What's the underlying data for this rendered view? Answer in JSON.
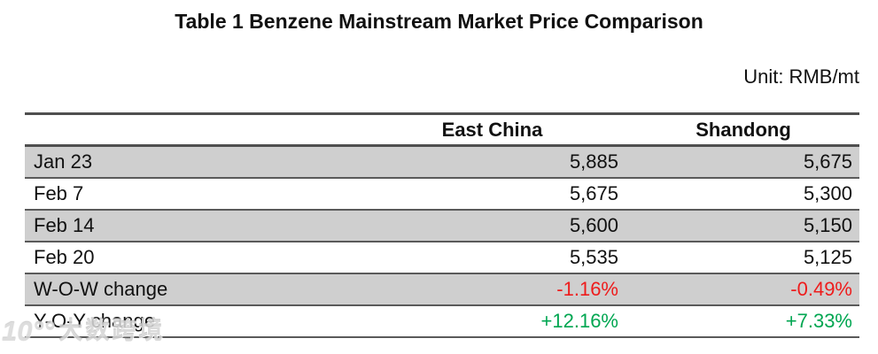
{
  "title": "Table 1 Benzene Mainstream Market Price Comparison",
  "unit_label": "Unit: RMB/mt",
  "table": {
    "columns": [
      "",
      "East China",
      "Shandong"
    ],
    "rows": [
      {
        "label": "Jan 23",
        "east_china": "5,885",
        "shandong": "5,675",
        "shaded": true,
        "value_type": "price"
      },
      {
        "label": "Feb 7",
        "east_china": "5,675",
        "shandong": "5,300",
        "shaded": false,
        "value_type": "price"
      },
      {
        "label": "Feb 14",
        "east_china": "5,600",
        "shandong": "5,150",
        "shaded": true,
        "value_type": "price"
      },
      {
        "label": "Feb 20",
        "east_china": "5,535",
        "shandong": "5,125",
        "shaded": false,
        "value_type": "price"
      },
      {
        "label": "W-O-W change",
        "east_china": "-1.16%",
        "shandong": "-0.49%",
        "shaded": true,
        "value_type": "negative"
      },
      {
        "label": "Y-O-Y change",
        "east_china": "+12.16%",
        "shandong": "+7.33%",
        "shaded": false,
        "value_type": "positive"
      }
    ]
  },
  "chart_data": {
    "type": "table",
    "title": "Table 1 Benzene Mainstream Market Price Comparison",
    "unit": "RMB/mt",
    "columns": [
      "East China",
      "Shandong"
    ],
    "categories": [
      "Jan 23",
      "Feb 7",
      "Feb 14",
      "Feb 20"
    ],
    "series": [
      {
        "name": "East China",
        "values": [
          5885,
          5675,
          5600,
          5535
        ],
        "wow_change": "-1.16%",
        "yoy_change": "+12.16%"
      },
      {
        "name": "Shandong",
        "values": [
          5675,
          5300,
          5150,
          5125
        ],
        "wow_change": "-0.49%",
        "yoy_change": "+7.33%"
      }
    ]
  },
  "watermark": {
    "logo": "10°°",
    "text": "大数跨境"
  },
  "colors": {
    "negative": "#ee1c1c",
    "positive": "#00a651",
    "row_shade": "#cfcfcf",
    "border": "#4f4f4f",
    "text": "#111111"
  }
}
